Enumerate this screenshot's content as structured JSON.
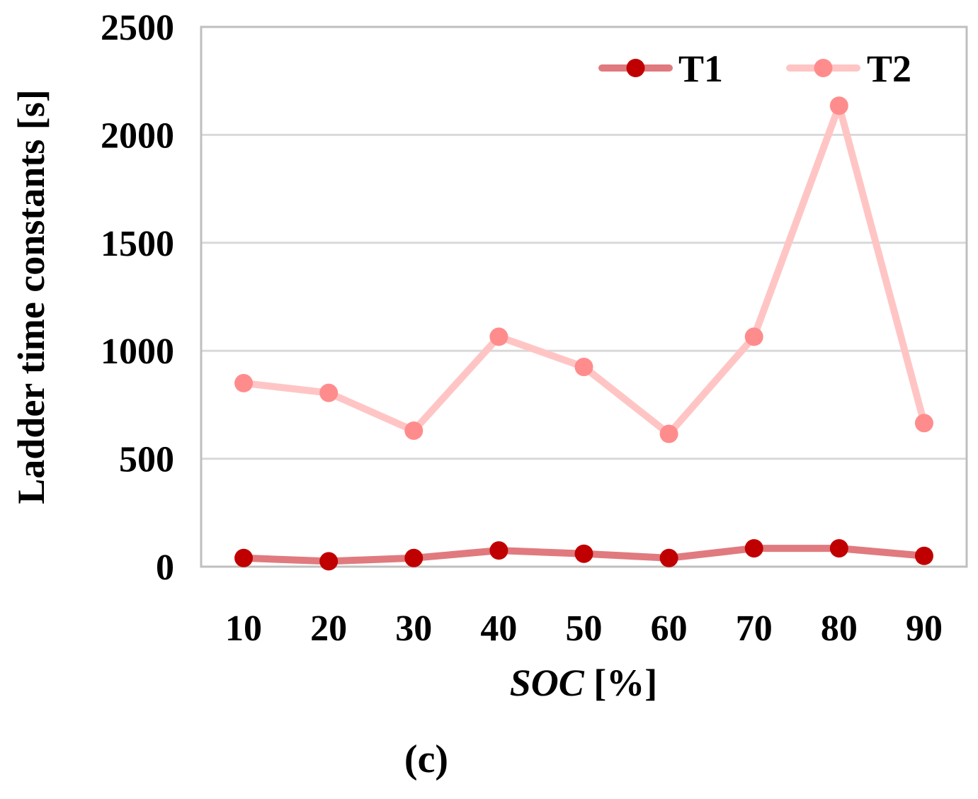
{
  "chart_data": {
    "type": "line",
    "title": "",
    "xlabel_italic": "SOC",
    "xlabel_unit": " [%]",
    "ylabel": "Ladder time constants [s]",
    "categories": [
      "10",
      "20",
      "30",
      "40",
      "50",
      "60",
      "70",
      "80",
      "90"
    ],
    "ylim": [
      0,
      2500
    ],
    "yticks": [
      "0",
      "500",
      "1000",
      "1500",
      "2000",
      "2500"
    ],
    "grid": true,
    "legend_position": "top-right",
    "series": [
      {
        "name": "T1",
        "values": [
          40,
          25,
          40,
          75,
          60,
          40,
          85,
          85,
          50
        ],
        "line_color": "#E07A7E",
        "marker_color": "#C00000"
      },
      {
        "name": "T2",
        "values": [
          850,
          805,
          630,
          1065,
          925,
          615,
          1065,
          2135,
          665
        ],
        "line_color": "#FFC5C5",
        "marker_color": "#FF8C8C"
      }
    ],
    "caption": "(c)"
  }
}
